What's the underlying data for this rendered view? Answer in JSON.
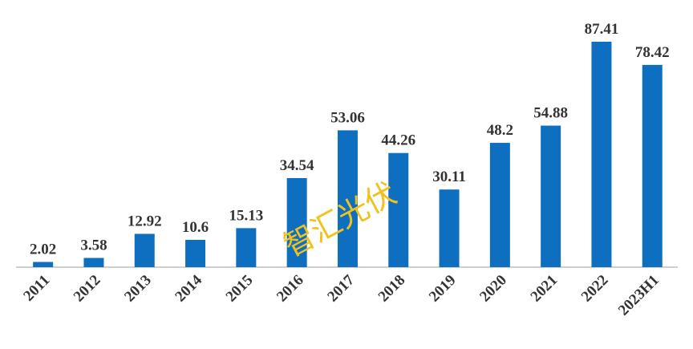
{
  "chart_data": {
    "type": "bar",
    "categories": [
      "2011",
      "2012",
      "2013",
      "2014",
      "2015",
      "2016",
      "2017",
      "2018",
      "2019",
      "2020",
      "2021",
      "2022",
      "2023H1"
    ],
    "values": [
      2.02,
      3.58,
      12.92,
      10.6,
      15.13,
      34.54,
      53.06,
      44.26,
      30.11,
      48.2,
      54.88,
      87.41,
      78.42
    ],
    "color": "#0e6fc1",
    "watermark": "智汇光伏"
  }
}
